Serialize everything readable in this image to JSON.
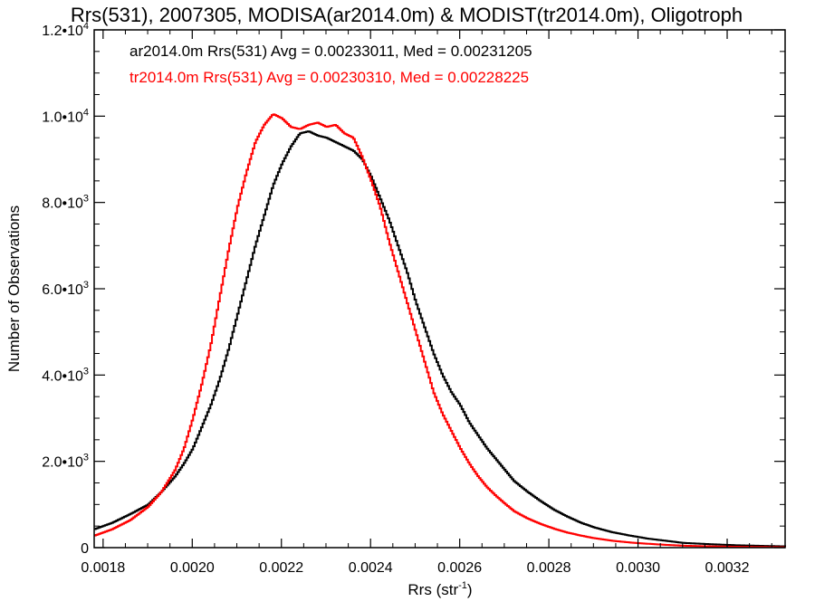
{
  "chart_data": {
    "type": "line",
    "title": "Rrs(531), 2007305, MODISA(ar2014.0m) & MODIST(tr2014.0m), Oligotroph",
    "xlabel": "Rrs (str",
    "xlabel_sup": "-1",
    "xlabel_suffix": ")",
    "ylabel": "Number of Observations",
    "xlim": [
      0.00178,
      0.00333
    ],
    "ylim": [
      0,
      12000
    ],
    "x_ticks": [
      0.0018,
      0.002,
      0.0022,
      0.0024,
      0.0026,
      0.0028,
      0.003,
      0.0032
    ],
    "x_tick_labels": [
      "0.0018",
      "0.0020",
      "0.0022",
      "0.0024",
      "0.0026",
      "0.0028",
      "0.0030",
      "0.0032"
    ],
    "y_ticks": [
      0,
      2000,
      4000,
      6000,
      8000,
      10000,
      12000
    ],
    "y_tick_labels": [
      {
        "base": "0",
        "exp": ""
      },
      {
        "base": "2.0•10",
        "exp": "3"
      },
      {
        "base": "4.0•10",
        "exp": "3"
      },
      {
        "base": "6.0•10",
        "exp": "3"
      },
      {
        "base": "8.0•10",
        "exp": "3"
      },
      {
        "base": "1.0•10",
        "exp": "4"
      },
      {
        "base": "1.2•10",
        "exp": "4"
      }
    ],
    "grid": false,
    "legend_position": "top-left",
    "series": [
      {
        "name": "ar2014.0m Rrs(531) Avg = 0.00233011, Med = 0.00231205",
        "color": "#000000",
        "x": [
          0.00178,
          0.00182,
          0.00186,
          0.0019,
          0.00193,
          0.00196,
          0.00198,
          0.002,
          0.00202,
          0.00204,
          0.00206,
          0.00208,
          0.0021,
          0.00212,
          0.00214,
          0.00216,
          0.00218,
          0.0022,
          0.00222,
          0.00224,
          0.00226,
          0.00228,
          0.0023,
          0.00232,
          0.00234,
          0.00236,
          0.00238,
          0.0024,
          0.00242,
          0.00244,
          0.00246,
          0.00248,
          0.0025,
          0.00252,
          0.00254,
          0.00256,
          0.00258,
          0.0026,
          0.00262,
          0.00264,
          0.00266,
          0.00268,
          0.0027,
          0.00272,
          0.00275,
          0.00278,
          0.00281,
          0.00284,
          0.00287,
          0.0029,
          0.00294,
          0.00298,
          0.00302,
          0.00306,
          0.0031,
          0.00316,
          0.00322,
          0.00328,
          0.00333
        ],
        "y": [
          430,
          580,
          780,
          1000,
          1300,
          1650,
          1950,
          2300,
          2800,
          3300,
          3900,
          4600,
          5400,
          6200,
          7000,
          7700,
          8400,
          8900,
          9300,
          9600,
          9650,
          9550,
          9500,
          9400,
          9300,
          9200,
          9000,
          8600,
          8100,
          7600,
          7000,
          6400,
          5700,
          5100,
          4500,
          4000,
          3600,
          3300,
          2900,
          2600,
          2300,
          2050,
          1800,
          1550,
          1300,
          1080,
          880,
          720,
          580,
          470,
          360,
          280,
          210,
          160,
          110,
          80,
          55,
          40,
          30
        ]
      },
      {
        "name": "tr2014.0m Rrs(531) Avg = 0.00230310, Med = 0.00228225",
        "color": "#ff0000",
        "x": [
          0.00178,
          0.00182,
          0.00186,
          0.0019,
          0.00193,
          0.00196,
          0.00198,
          0.002,
          0.00202,
          0.00204,
          0.00206,
          0.00208,
          0.0021,
          0.00212,
          0.00214,
          0.00216,
          0.00218,
          0.0022,
          0.00222,
          0.00224,
          0.00226,
          0.00228,
          0.0023,
          0.00232,
          0.00234,
          0.00236,
          0.00238,
          0.0024,
          0.00242,
          0.00244,
          0.00246,
          0.00248,
          0.0025,
          0.00252,
          0.00254,
          0.00256,
          0.00258,
          0.0026,
          0.00262,
          0.00264,
          0.00266,
          0.00268,
          0.0027,
          0.00272,
          0.00275,
          0.00278,
          0.00281,
          0.00284,
          0.00287,
          0.0029,
          0.00294,
          0.00298,
          0.00302,
          0.00306,
          0.0031,
          0.00316,
          0.00322,
          0.00328,
          0.00333
        ],
        "y": [
          280,
          430,
          640,
          950,
          1300,
          1800,
          2300,
          3000,
          3800,
          4700,
          5800,
          6900,
          7900,
          8700,
          9400,
          9800,
          10050,
          9950,
          9750,
          9700,
          9800,
          9850,
          9750,
          9800,
          9600,
          9500,
          9050,
          8500,
          7900,
          7100,
          6400,
          5700,
          5000,
          4300,
          3600,
          3100,
          2700,
          2300,
          1950,
          1650,
          1400,
          1200,
          1020,
          850,
          680,
          550,
          440,
          350,
          280,
          220,
          160,
          120,
          90,
          65,
          45,
          30,
          20,
          15,
          10
        ]
      }
    ]
  }
}
